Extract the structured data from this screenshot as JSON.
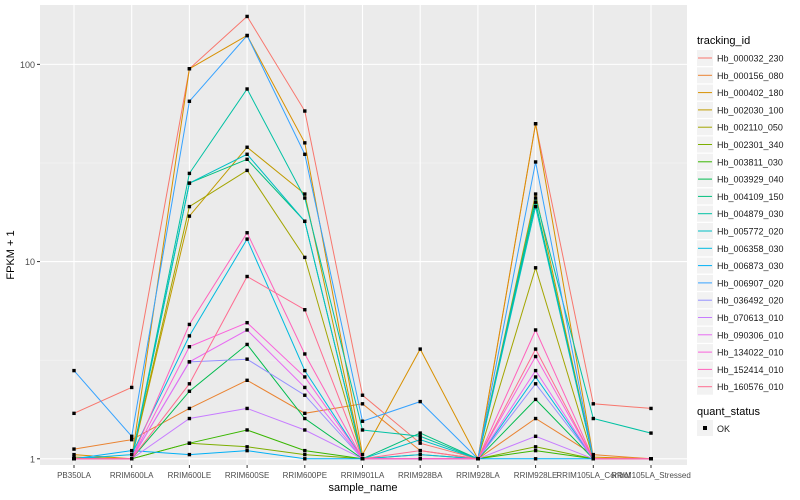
{
  "chart_data": {
    "type": "line",
    "xlabel": "sample_name",
    "ylabel": "FPKM + 1",
    "y_scale": "log10",
    "ylim": [
      0.93,
      200
    ],
    "y_ticks": [
      1,
      10,
      100
    ],
    "y_tick_labels": [
      "1",
      "10",
      "100"
    ],
    "grid": true,
    "legend_position": "right",
    "categories": [
      "PB350LA",
      "RRIM600LA",
      "RRIM600LE",
      "RRIM600SE",
      "RRIM600PE",
      "RRIM901LA",
      "RRIM928BA",
      "RRIM928LA",
      "RRIM928LE",
      "RRIM105LA_Control",
      "RRIM105LA_Stressed"
    ],
    "legend_title": "tracking_id",
    "shape_legend_title": "quant_status",
    "shape_legend_item": "OK",
    "series": [
      {
        "name": "Hb_000032_230",
        "color": "#F8766D",
        "values": [
          1.7,
          2.3,
          95,
          175,
          58,
          2.1,
          1.2,
          1.0,
          50,
          1.9,
          1.8
        ]
      },
      {
        "name": "Hb_000156_080",
        "color": "#EA8331",
        "values": [
          1.12,
          1.25,
          1.8,
          2.5,
          1.7,
          1.9,
          1.1,
          1.0,
          1.6,
          1.05,
          1.0
        ]
      },
      {
        "name": "Hb_000402_180",
        "color": "#D89000",
        "values": [
          1.05,
          1.0,
          95,
          140,
          40,
          1.05,
          3.6,
          1.0,
          50,
          1.02,
          1.0
        ]
      },
      {
        "name": "Hb_002030_100",
        "color": "#C09B00",
        "values": [
          1.02,
          1.0,
          17,
          38,
          22,
          1.0,
          1.05,
          1.0,
          22,
          1.0,
          1.0
        ]
      },
      {
        "name": "Hb_002110_050",
        "color": "#A3A500",
        "values": [
          1.0,
          1.0,
          19,
          29,
          10.5,
          1.0,
          1.0,
          1.0,
          9.3,
          1.0,
          1.0
        ]
      },
      {
        "name": "Hb_002301_340",
        "color": "#7CAE00",
        "values": [
          1.0,
          1.0,
          1.2,
          1.15,
          1.05,
          1.0,
          1.0,
          1.0,
          1.15,
          1.0,
          1.0
        ]
      },
      {
        "name": "Hb_003811_030",
        "color": "#39B600",
        "values": [
          1.0,
          1.0,
          1.2,
          1.4,
          1.1,
          1.0,
          1.0,
          1.0,
          1.1,
          1.0,
          1.0
        ]
      },
      {
        "name": "Hb_003929_040",
        "color": "#00BB4E",
        "values": [
          1.0,
          1.0,
          2.2,
          3.8,
          1.6,
          1.0,
          1.0,
          1.0,
          2.0,
          1.0,
          1.0
        ]
      },
      {
        "name": "Hb_004109_150",
        "color": "#00BF7D",
        "values": [
          1.0,
          1.0,
          25,
          33,
          16,
          1.0,
          1.35,
          1.0,
          20,
          1.0,
          1.0
        ]
      },
      {
        "name": "Hb_004879_030",
        "color": "#00C1A3",
        "values": [
          1.0,
          1.0,
          28,
          75,
          21,
          1.4,
          1.3,
          1.0,
          21,
          1.6,
          1.35
        ]
      },
      {
        "name": "Hb_005772_020",
        "color": "#00BFC4",
        "values": [
          1.0,
          1.0,
          25,
          35,
          16,
          1.0,
          1.25,
          1.0,
          19,
          1.0,
          1.0
        ]
      },
      {
        "name": "Hb_006358_030",
        "color": "#00BAE0",
        "values": [
          1.0,
          1.05,
          4.2,
          13,
          2.8,
          1.0,
          1.05,
          1.0,
          2.6,
          1.0,
          1.0
        ]
      },
      {
        "name": "Hb_006873_030",
        "color": "#00B0F6",
        "values": [
          1.0,
          1.1,
          1.05,
          1.1,
          1.0,
          1.0,
          1.0,
          1.0,
          1.0,
          1.0,
          1.0
        ]
      },
      {
        "name": "Hb_006907_020",
        "color": "#35A2FF",
        "values": [
          2.8,
          1.3,
          65,
          140,
          35,
          1.55,
          1.95,
          1.0,
          32,
          1.0,
          1.0
        ]
      },
      {
        "name": "Hb_036492_020",
        "color": "#9590FF",
        "values": [
          1.0,
          1.0,
          3.1,
          3.2,
          2.1,
          1.0,
          1.0,
          1.0,
          2.4,
          1.0,
          1.0
        ]
      },
      {
        "name": "Hb_070613_010",
        "color": "#C77CFF",
        "values": [
          1.0,
          1.0,
          1.6,
          1.8,
          1.4,
          1.0,
          1.0,
          1.0,
          1.3,
          1.0,
          1.0
        ]
      },
      {
        "name": "Hb_090306_010",
        "color": "#E76BF3",
        "values": [
          1.0,
          1.0,
          3.1,
          4.5,
          2.3,
          1.0,
          1.0,
          1.0,
          2.8,
          1.0,
          1.0
        ]
      },
      {
        "name": "Hb_134022_010",
        "color": "#FA62DB",
        "values": [
          1.0,
          1.0,
          3.7,
          4.9,
          2.6,
          1.0,
          1.0,
          1.0,
          3.3,
          1.0,
          1.0
        ]
      },
      {
        "name": "Hb_152414_010",
        "color": "#FF62BC",
        "values": [
          1.0,
          1.0,
          4.8,
          14,
          3.4,
          1.0,
          1.0,
          1.0,
          4.5,
          1.0,
          1.0
        ]
      },
      {
        "name": "Hb_160576_010",
        "color": "#FF6C91",
        "values": [
          1.0,
          1.0,
          2.4,
          8.4,
          5.7,
          1.0,
          1.1,
          1.0,
          3.6,
          1.0,
          1.0
        ]
      }
    ]
  }
}
